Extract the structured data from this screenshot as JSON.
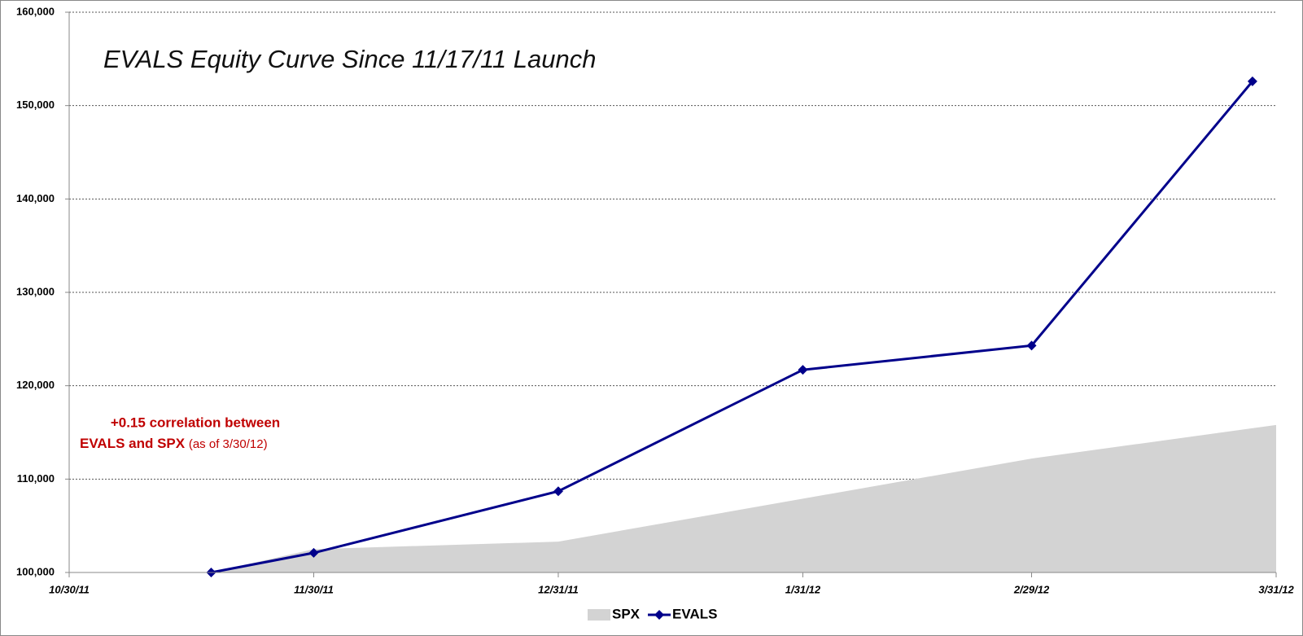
{
  "chart_data": {
    "type": "line",
    "title": "EVALS Equity Curve Since 11/17/11 Launch",
    "annotations": [
      "+0.15 correlation between",
      "EVALS and SPX",
      "(as of 3/30/12)"
    ],
    "series": [
      {
        "name": "SPX",
        "type": "area",
        "color": "#d3d3d3",
        "x": [
          "11/17/11",
          "11/30/11",
          "12/31/11",
          "1/31/12",
          "2/29/12",
          "3/31/12"
        ],
        "values": [
          100000,
          102500,
          103300,
          107900,
          112200,
          115800
        ]
      },
      {
        "name": "EVALS",
        "type": "line",
        "color": "#00008b",
        "x": [
          "11/17/11",
          "11/30/11",
          "12/31/11",
          "1/31/12",
          "2/29/12",
          "3/28/12"
        ],
        "values": [
          100000,
          102100,
          108700,
          121700,
          124300,
          152600
        ]
      }
    ],
    "xlim": [
      "10/30/11",
      "3/31/12"
    ],
    "xticks": [
      "10/30/11",
      "11/30/11",
      "12/31/11",
      "1/31/12",
      "2/29/12",
      "3/31/12"
    ],
    "ylim": [
      100000,
      160000
    ],
    "yticks": [
      {
        "value": 100000,
        "label": "100,000"
      },
      {
        "value": 110000,
        "label": "110,000"
      },
      {
        "value": 120000,
        "label": "120,000"
      },
      {
        "value": 130000,
        "label": "130,000"
      },
      {
        "value": 140000,
        "label": "140,000"
      },
      {
        "value": 150000,
        "label": "150,000"
      },
      {
        "value": 160000,
        "label": "160,000"
      }
    ],
    "grid": true
  }
}
